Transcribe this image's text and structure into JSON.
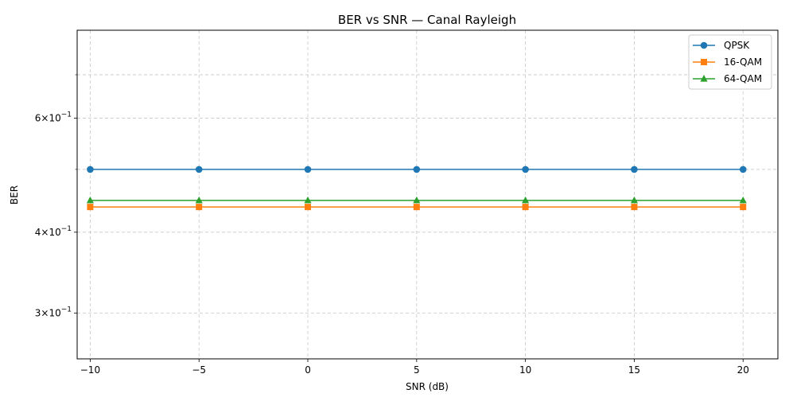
{
  "chart_data": {
    "type": "line",
    "title": "BER vs SNR — Canal Rayleigh",
    "xlabel": "SNR (dB)",
    "ylabel": "BER",
    "x": [
      -10,
      -5,
      0,
      5,
      10,
      15,
      20
    ],
    "xlim": [
      -10.6,
      21.6
    ],
    "ylim": [
      0.255,
      0.82
    ],
    "yscale": "log",
    "xticks": [
      -10,
      -5,
      0,
      5,
      10,
      15,
      20
    ],
    "xtick_labels": [
      "−10",
      "−5",
      "0",
      "5",
      "10",
      "15",
      "20"
    ],
    "yticks_major": [
      {
        "value": 0.3,
        "mantissa": "3",
        "label": "3 × 10⁻¹"
      },
      {
        "value": 0.4,
        "mantissa": "4",
        "label": "4 × 10⁻¹"
      },
      {
        "value": 0.6,
        "mantissa": "6",
        "label": "6 × 10⁻¹"
      }
    ],
    "yticks_minor": [
      0.5,
      0.7
    ],
    "grid": true,
    "legend_position": "top-right",
    "series": [
      {
        "name": "QPSK",
        "color": "#1f77b4",
        "marker": "circle",
        "values": [
          0.5,
          0.5,
          0.5,
          0.5,
          0.5,
          0.5,
          0.5
        ]
      },
      {
        "name": "16-QAM",
        "color": "#ff7f0e",
        "marker": "square",
        "values": [
          0.4375,
          0.4375,
          0.4375,
          0.4375,
          0.4375,
          0.4375,
          0.4375
        ]
      },
      {
        "name": "64-QAM",
        "color": "#2ca02c",
        "marker": "triangle",
        "values": [
          0.4479,
          0.4479,
          0.4479,
          0.4479,
          0.4479,
          0.4479,
          0.4479
        ]
      }
    ]
  }
}
